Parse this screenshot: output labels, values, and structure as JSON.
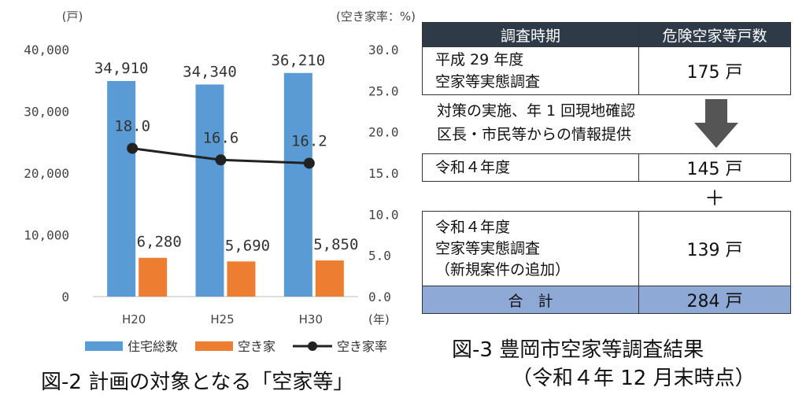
{
  "chart_data": {
    "type": "bar",
    "categories": [
      "H20",
      "H25",
      "H30"
    ],
    "x_unit": "(年)",
    "left_axis": {
      "unit": "(戸)",
      "ticks": [
        "40,000",
        "30,000",
        "20,000",
        "10,000",
        "0"
      ],
      "ylim": [
        0,
        40000
      ]
    },
    "right_axis": {
      "unit": "(空き家率：%)",
      "ticks": [
        "30.0",
        "25.0",
        "20.0",
        "15.0",
        "10.0",
        "5.0",
        "0.0"
      ],
      "ylim": [
        0,
        30
      ]
    },
    "series": [
      {
        "name": "住宅総数",
        "kind": "bar",
        "axis": "left",
        "color": "#5b9bd5",
        "values": [
          34910,
          34340,
          36210
        ],
        "labels": [
          "34,910",
          "34,340",
          "36,210"
        ]
      },
      {
        "name": "空き家",
        "kind": "bar",
        "axis": "left",
        "color": "#ed7d31",
        "values": [
          6280,
          5690,
          5850
        ],
        "labels": [
          "6,280",
          "5,690",
          "5,850"
        ]
      },
      {
        "name": "空き家率",
        "kind": "line",
        "axis": "right",
        "color": "#222222",
        "values": [
          18.0,
          16.6,
          16.2
        ],
        "labels": [
          "18.0",
          "16.6",
          "16.2"
        ]
      }
    ],
    "legend": [
      "住宅総数",
      "空き家",
      "空き家率"
    ],
    "legend_placement": "bottom",
    "grid": false
  },
  "caption_fig2": "図-2 計画の対象となる「空家等」",
  "table": {
    "header": [
      "調査時期",
      "危険空家等戸数"
    ],
    "row1": {
      "label_lines": [
        "平成 29 年度",
        "空家等実態調査"
      ],
      "value": "175 戸"
    },
    "note_lines": [
      "対策の実施、年 1 回現地確認",
      "区長・市民等からの情報提供"
    ],
    "row2": {
      "label": "令和４年度",
      "value": "145 戸"
    },
    "plus": "＋",
    "row3": {
      "label_lines": [
        "令和４年度",
        "空家等実態調査",
        "（新規案件の追加）"
      ],
      "value": "139 戸"
    },
    "total": {
      "label": "合　計",
      "value": "284 戸"
    }
  },
  "caption_fig3": [
    "図-3 豊岡市空家等調査結果",
    "（令和４年 12 月末時点）"
  ]
}
